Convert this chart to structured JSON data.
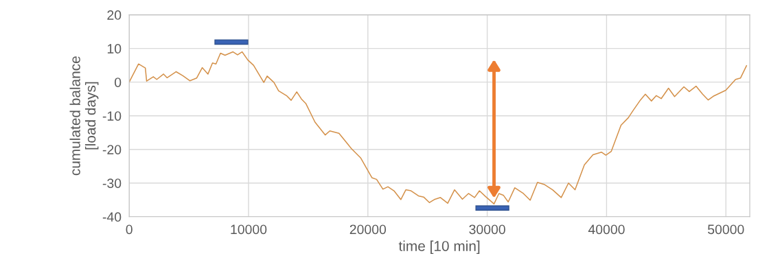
{
  "chart_data": {
    "type": "line",
    "xlabel": "time [10 min]",
    "ylabel": "cumulated balance\n[load days]",
    "x": [
      0,
      783,
      1354,
      1460,
      2020,
      2310,
      2880,
      3170,
      3930,
      4500,
      5080,
      5650,
      6120,
      6600,
      6980,
      7270,
      7650,
      8030,
      8700,
      9080,
      9460,
      9940,
      10420,
      11280,
      11560,
      12130,
      12520,
      13180,
      13570,
      14040,
      14430,
      14810,
      15570,
      16430,
      16810,
      17580,
      18630,
      19390,
      20340,
      20730,
      21260,
      21680,
      22190,
      22760,
      23180,
      23620,
      24240,
      24690,
      25160,
      25560,
      26080,
      26690,
      27260,
      27920,
      28430,
      28940,
      29350,
      29860,
      30570,
      30980,
      31350,
      31760,
      32310,
      33030,
      33600,
      34210,
      34770,
      35480,
      36200,
      36810,
      37360,
      38140,
      38860,
      39570,
      39940,
      40390,
      41210,
      41820,
      42230,
      42840,
      43250,
      43760,
      44170,
      44580,
      45190,
      45700,
      46480,
      46930,
      47500,
      48050,
      48520,
      48940,
      49990,
      50810,
      51220,
      51730
    ],
    "series": [
      {
        "color": "#d4914a",
        "values": [
          0,
          5.4,
          4.2,
          0.3,
          1.6,
          0.8,
          2.4,
          1.3,
          3.1,
          1.9,
          0.4,
          1.2,
          4.3,
          2.4,
          5.7,
          5.4,
          8.6,
          8.0,
          9.0,
          8.1,
          9.0,
          6.6,
          5.0,
          -0.1,
          1.8,
          -0.1,
          -2.6,
          -4.0,
          -5.4,
          -2.9,
          -5.0,
          -6.4,
          -11.9,
          -15.7,
          -14.5,
          -15.2,
          -19.8,
          -22.5,
          -28.4,
          -28.9,
          -31.8,
          -31.1,
          -32.3,
          -34.9,
          -32.0,
          -32.3,
          -33.8,
          -34.2,
          -35.8,
          -34.9,
          -34.3,
          -36.0,
          -32.0,
          -34.8,
          -33.1,
          -34.3,
          -32.3,
          -34.0,
          -36.2,
          -33.1,
          -33.6,
          -35.6,
          -31.4,
          -33.1,
          -35.1,
          -29.8,
          -30.4,
          -32.0,
          -34.3,
          -30.0,
          -32.0,
          -24.6,
          -21.6,
          -20.8,
          -21.7,
          -20.6,
          -12.8,
          -10.6,
          -8.4,
          -5.3,
          -3.6,
          -5.6,
          -4.0,
          -4.9,
          -1.8,
          -4.3,
          -1.4,
          -2.8,
          -1.2,
          -3.6,
          -5.3,
          -4.2,
          -2.4,
          0.8,
          1.2,
          4.9
        ]
      }
    ],
    "xlim": [
      0,
      52000
    ],
    "xticks": [
      0,
      10000,
      20000,
      30000,
      40000,
      50000
    ],
    "ylim": [
      -40,
      20
    ],
    "yticks": [
      -40,
      -30,
      -20,
      -10,
      0,
      10,
      20
    ],
    "grid": true,
    "marker": "none",
    "line_style": "solid"
  }
}
